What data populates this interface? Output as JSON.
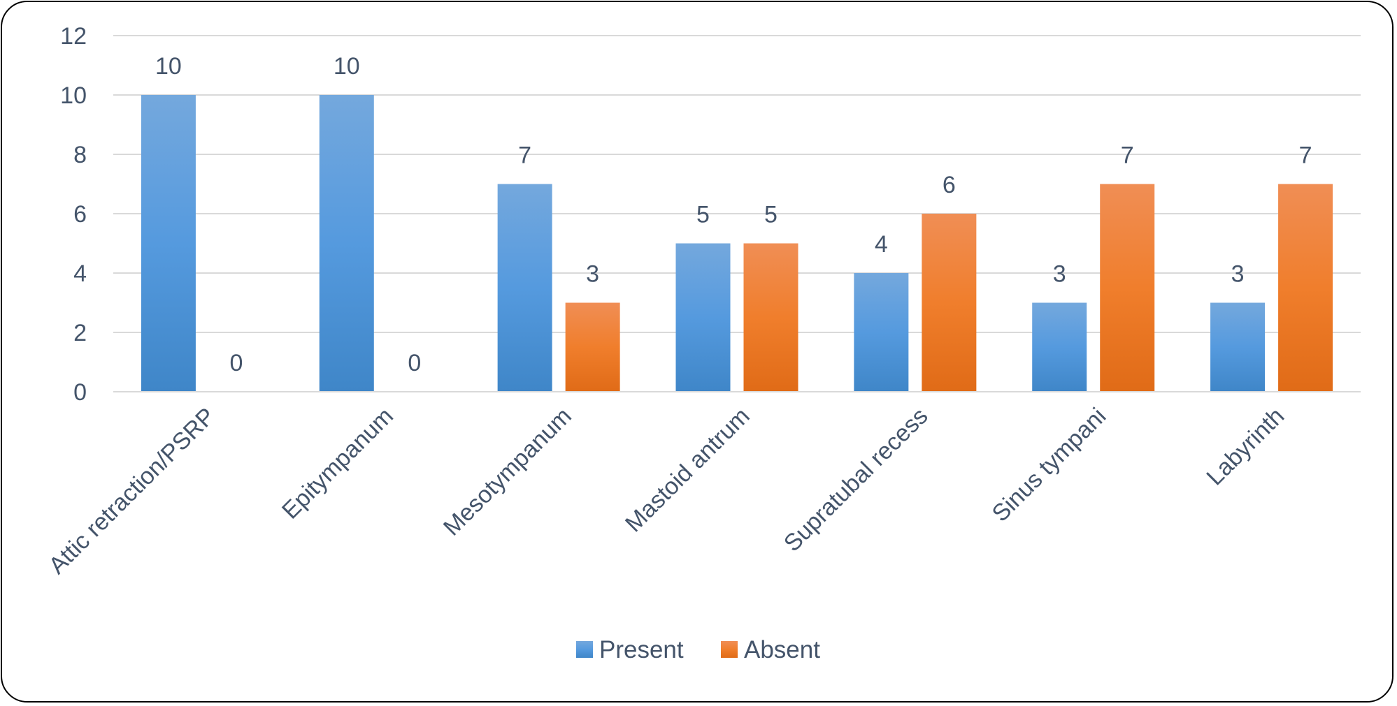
{
  "chart_data": {
    "type": "bar",
    "categories": [
      "Attic retraction/PSRP",
      "Epitympanum",
      "Mesotympanum",
      "Mastoid antrum",
      "Supratubal recess",
      "Sinus tympani",
      "Labyrinth"
    ],
    "series": [
      {
        "name": "Present",
        "values": [
          10,
          10,
          7,
          5,
          4,
          3,
          3
        ],
        "color": "#5b9bd5"
      },
      {
        "name": "Absent",
        "values": [
          0,
          0,
          3,
          5,
          6,
          7,
          7
        ],
        "color": "#ed7d31"
      }
    ],
    "yticks": [
      0,
      2,
      4,
      6,
      8,
      10,
      12
    ],
    "ylim": [
      0,
      12
    ],
    "grid": true,
    "data_labels": true,
    "legend": "bottom"
  }
}
